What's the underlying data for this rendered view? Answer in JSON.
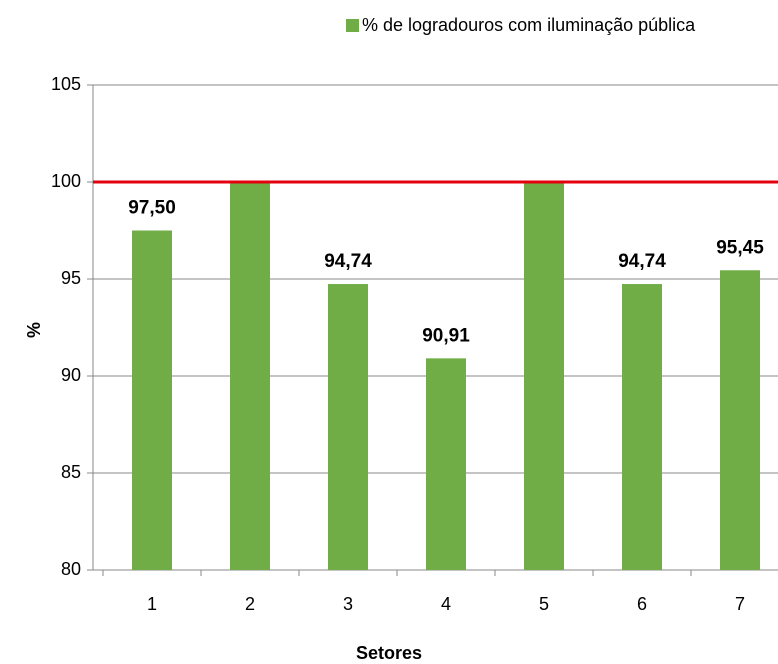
{
  "chart_data": {
    "type": "bar",
    "series": [
      {
        "name": "% de logradouros com iluminação pública",
        "color": "#70ad47",
        "values": [
          97.5,
          100,
          94.74,
          90.91,
          100,
          94.74,
          95.45
        ],
        "value_labels": [
          "97,50",
          null,
          "94,74",
          "90,91",
          null,
          "94,74",
          "95,45"
        ]
      }
    ],
    "categories": [
      "1",
      "2",
      "3",
      "4",
      "5",
      "6",
      "7"
    ],
    "xlabel": "Setores",
    "ylabel": "%",
    "ylim": [
      80,
      105
    ],
    "yticks": [
      80,
      85,
      90,
      95,
      100,
      105
    ],
    "grid": true,
    "reference_line": {
      "value": 100,
      "color": "#e3000f"
    },
    "legend": "top"
  }
}
